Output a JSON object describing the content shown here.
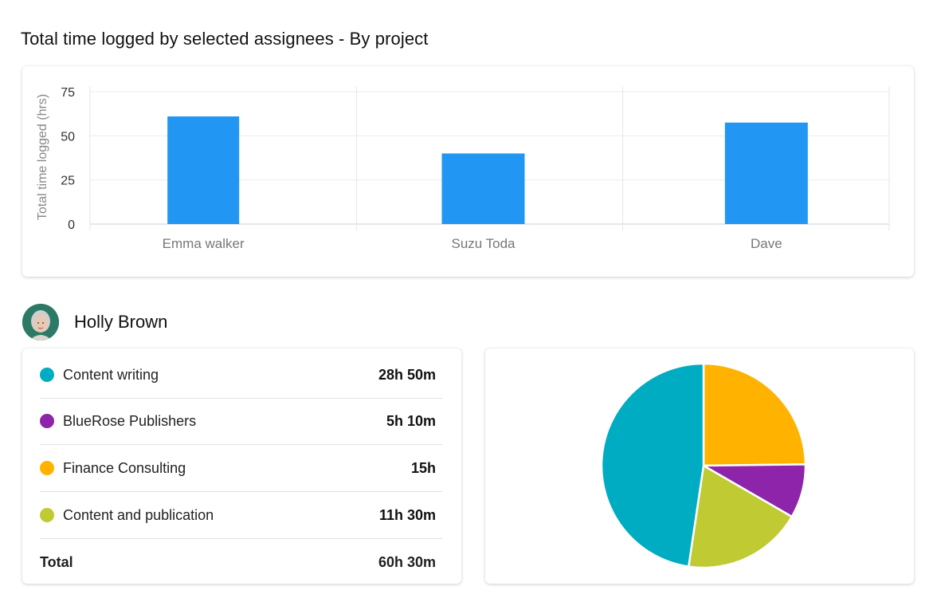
{
  "page_title": "Total time logged by selected assignees - By project",
  "chart_data": [
    {
      "type": "bar",
      "title": "",
      "ylabel": "Total time  logged (hrs)",
      "xlabel": "",
      "categories": [
        "Emma walker",
        "Suzu Toda",
        "Dave"
      ],
      "values": [
        61,
        40,
        57.5
      ],
      "ylim": [
        0,
        75
      ],
      "yticks": [
        0,
        25,
        50,
        75
      ],
      "grid": true,
      "color": "#2196F3"
    },
    {
      "type": "pie",
      "labels": [
        "Content writing",
        "BlueRose Publishers",
        "Finance Consulting",
        "Content and publication"
      ],
      "values_minutes": [
        1730,
        310,
        900,
        690
      ],
      "slice_order_clockwise_from_top": [
        "Finance Consulting",
        "BlueRose Publishers",
        "Content and publication",
        "Content writing"
      ]
    }
  ],
  "user": {
    "name": "Holly Brown"
  },
  "projects": [
    {
      "name": "Content writing",
      "time": "28h 50m",
      "color": "#00ACC1"
    },
    {
      "name": "BlueRose Publishers",
      "time": "5h 10m",
      "color": "#8E24AA"
    },
    {
      "name": "Finance Consulting",
      "time": "15h",
      "color": "#FFB300"
    },
    {
      "name": "Content and publication",
      "time": "11h 30m",
      "color": "#C0CA33"
    }
  ],
  "total": {
    "label": "Total",
    "value": "60h 30m"
  }
}
